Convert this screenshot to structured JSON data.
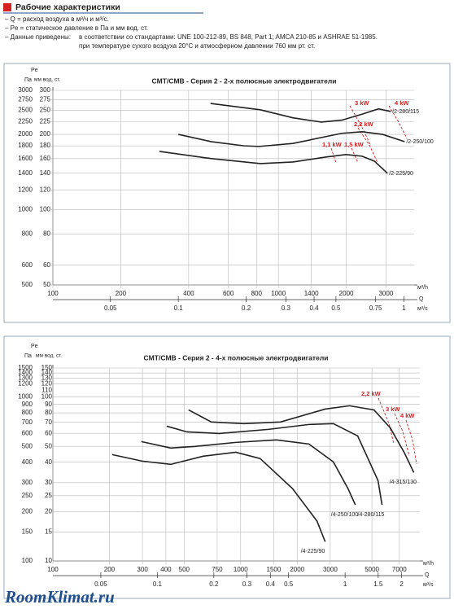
{
  "header": {
    "title": "Рабочие характеристики",
    "notes": [
      "– Q = расход воздуха в м³/ч и м³/с.",
      "– Pe = статическое давление в Па и мм вод. ст.",
      "– Данные приведены:"
    ],
    "standards": [
      "в соответствии со стандартами: UNE 100-212-89, BS 848, Part 1; AMCA 210-85  и ASHRAE 51-1985.",
      "при температуре сухого воздуха 20°С и атмосферном давлении 760 мм рт. ст."
    ]
  },
  "chart_data": [
    {
      "type": "line",
      "title": "CMT/CMB  -  Серия 2  -  2-х полюсные электродвигатели",
      "y_label": "Pe",
      "y_unit": "Па",
      "y2_unit": "мм вод. ст.",
      "x_unit": "м³/h",
      "x_label": "Q",
      "x2_unit": "м³/s",
      "log_scale": true,
      "grid": true,
      "xlim": [
        100,
        4000
      ],
      "xticks": [
        100,
        200,
        400,
        600,
        800,
        1000,
        1400,
        2000,
        3000
      ],
      "x2lim": [
        0.02778,
        1.111
      ],
      "x2ticks": [
        0.05,
        0.1,
        0.2,
        0.3,
        0.4,
        0.5,
        0.75,
        1
      ],
      "ylim": [
        500,
        3000
      ],
      "yticks": [
        500,
        600,
        800,
        1000,
        1200,
        1400,
        1600,
        1800,
        2000,
        2250,
        2500,
        2750,
        3000
      ],
      "y2lim": [
        50,
        300
      ],
      "y2ticks": [
        50,
        60,
        80,
        100,
        120,
        140,
        160,
        180,
        200,
        225,
        250,
        275,
        300
      ],
      "series": [
        {
          "name": "/2-280/115",
          "color": "#222222",
          "x": [
            500,
            830,
            1160,
            1550,
            1910,
            2350,
            2780,
            3150
          ],
          "values": [
            2660,
            2510,
            2330,
            2240,
            2280,
            2410,
            2530,
            2470
          ]
        },
        {
          "name": "/2-250/100",
          "color": "#222222",
          "x": [
            360,
            505,
            705,
            820,
            1160,
            1910,
            2350,
            2900,
            3630
          ],
          "values": [
            2000,
            1870,
            1800,
            1790,
            1840,
            2020,
            2050,
            2000,
            1870
          ]
        },
        {
          "name": "/2-225/90",
          "color": "#222222",
          "x": [
            297,
            506,
            833,
            1161,
            1620,
            1995,
            2352,
            2667,
            3048
          ],
          "values": [
            1711,
            1600,
            1529,
            1552,
            1623,
            1661,
            1636,
            1563,
            1397
          ]
        }
      ],
      "annotations": [
        "3 kW",
        "4 kW",
        "2,2 kW",
        "1,1 kW",
        "1,5 kW"
      ],
      "annotation_color": "#d42020"
    },
    {
      "type": "line",
      "title": "CMT/CMB  -  Серия 2  -  4-х полюсные электродвигатели",
      "y_label": "Pe",
      "y_unit": "Па",
      "y2_unit": "мм вод. ст.",
      "x_unit": "м³/h",
      "x_label": "Q",
      "x2_unit": "м³/s",
      "log_scale": true,
      "grid": true,
      "xlim": [
        100,
        9000
      ],
      "xticks": [
        100,
        200,
        300,
        400,
        500,
        750,
        1000,
        1500,
        2000,
        3000,
        5000,
        7000
      ],
      "x2lim": [
        0.02778,
        2.5
      ],
      "x2ticks": [
        0.05,
        0.1,
        0.2,
        0.3,
        0.4,
        0.5,
        1,
        1.5,
        2
      ],
      "ylim": [
        100,
        1500
      ],
      "yticks": [
        100,
        150,
        200,
        250,
        300,
        400,
        500,
        600,
        700,
        800,
        900,
        1000,
        1200,
        1300,
        1400,
        1500
      ],
      "y2lim": [
        10,
        150
      ],
      "y2ticks": [
        10,
        15,
        20,
        25,
        30,
        40,
        50,
        60,
        70,
        80,
        90,
        100,
        110,
        120,
        130,
        140,
        150
      ],
      "series": [
        {
          "name": "/4-315/130",
          "color": "#222222",
          "x": [
            528,
            698,
            1040,
            1630,
            2820,
            3800,
            5130,
            6260,
            7420,
            8360
          ],
          "values": [
            833,
            703,
            687,
            703,
            843,
            883,
            833,
            648,
            460,
            346
          ]
        },
        {
          "name": "/4-280/115",
          "color": "#222222",
          "x": [
            404,
            518,
            771,
            1404,
            2310,
            3115,
            4200,
            5390,
            5660
          ],
          "values": [
            663,
            612,
            598,
            634,
            679,
            687,
            578,
            309,
            220
          ]
        },
        {
          "name": "/4-250/100",
          "color": "#222222",
          "x": [
            296,
            424,
            572,
            942,
            1550,
            2310,
            3115,
            3730,
            4080
          ],
          "values": [
            534,
            488,
            499,
            528,
            547,
            516,
            402,
            276,
            220
          ]
        },
        {
          "name": "/4-225/90",
          "color": "#222222",
          "x": [
            207,
            299,
            424,
            632,
            942,
            1270,
            1890,
            2550,
            2820
          ],
          "values": [
            445,
            406,
            388,
            435,
            460,
            421,
            276,
            175,
            131
          ]
        }
      ],
      "annotations": [
        "2,2 kW",
        "3 kW",
        "4 kW"
      ],
      "annotation_color": "#d42020"
    }
  ],
  "watermark": "RoomKlimat.ru"
}
